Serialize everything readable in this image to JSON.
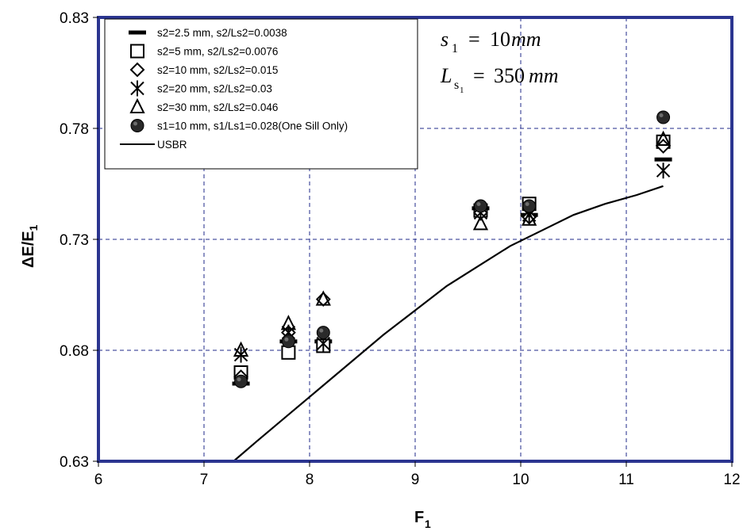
{
  "chart_data": {
    "type": "scatter",
    "xlabel": "F",
    "xlabel_sub": "1",
    "ylabel": "ΔE/E",
    "ylabel_sub": "1",
    "xlim": [
      6,
      12
    ],
    "ylim": [
      0.63,
      0.83
    ],
    "x_ticks": [
      6,
      7,
      8,
      9,
      10,
      11,
      12
    ],
    "y_ticks": [
      0.63,
      0.68,
      0.73,
      0.78,
      0.83
    ],
    "x_tick_labels": [
      "6",
      "7",
      "8",
      "9",
      "10",
      "11",
      "12"
    ],
    "y_tick_labels": [
      "0.63",
      "0.68",
      "0.73",
      "0.78",
      "0.83"
    ],
    "grid": true,
    "legend_position": "top-left",
    "series": [
      {
        "name": "s2=2.5 mm, s2/Ls2=0.0038",
        "marker": "dash",
        "x": [
          7.35,
          7.8,
          8.13,
          9.62,
          10.08,
          11.35
        ],
        "y": [
          0.665,
          0.684,
          0.684,
          0.744,
          0.741,
          0.766
        ]
      },
      {
        "name": "s2=5 mm, s2/Ls2=0.0076",
        "marker": "square",
        "x": [
          7.35,
          7.8,
          8.13,
          9.62,
          10.08,
          11.35
        ],
        "y": [
          0.67,
          0.679,
          0.682,
          0.743,
          0.746,
          0.774
        ]
      },
      {
        "name": "s2=10 mm, s2/Ls2=0.015",
        "marker": "diamond",
        "x": [
          7.35,
          7.8,
          8.13,
          9.62,
          10.08,
          11.35
        ],
        "y": [
          0.668,
          0.688,
          0.703,
          0.742,
          0.74,
          0.772
        ]
      },
      {
        "name": "s2=20 mm, s2/Ls2=0.03",
        "marker": "star",
        "x": [
          7.35,
          7.8,
          8.13,
          9.62,
          10.08,
          11.35
        ],
        "y": [
          0.678,
          0.688,
          0.683,
          0.742,
          0.741,
          0.761
        ]
      },
      {
        "name": "s2=30 mm, s2/Ls2=0.046",
        "marker": "triangle",
        "x": [
          7.35,
          7.8,
          8.13,
          9.62,
          10.08,
          11.35
        ],
        "y": [
          0.68,
          0.692,
          0.703,
          0.737,
          0.739,
          0.775
        ]
      },
      {
        "name": "s1=10 mm, s1/Ls1=0.028(One Sill Only)",
        "marker": "circle",
        "x": [
          7.35,
          7.8,
          8.13,
          9.62,
          10.08,
          11.35
        ],
        "y": [
          0.666,
          0.684,
          0.688,
          0.745,
          0.745,
          0.785
        ]
      },
      {
        "name": "USBR",
        "marker": "line",
        "x": [
          7.28,
          7.5,
          7.8,
          8.1,
          8.4,
          8.7,
          9.0,
          9.3,
          9.6,
          9.9,
          10.2,
          10.5,
          10.8,
          11.1,
          11.35
        ],
        "y": [
          0.63,
          0.639,
          0.651,
          0.663,
          0.675,
          0.687,
          0.698,
          0.709,
          0.718,
          0.727,
          0.734,
          0.741,
          0.746,
          0.75,
          0.754
        ]
      }
    ],
    "annotations": {
      "line1": {
        "var": "s",
        "sub": "1",
        "value": "10",
        "unit": "mm"
      },
      "line2": {
        "var": "L",
        "sub": "s",
        "subsub": "1",
        "value": "350",
        "unit": "mm"
      }
    }
  },
  "colors": {
    "frame": "#2b3590",
    "grid": "#1f2a8a",
    "marker": "#000000",
    "background": "#ffffff"
  }
}
